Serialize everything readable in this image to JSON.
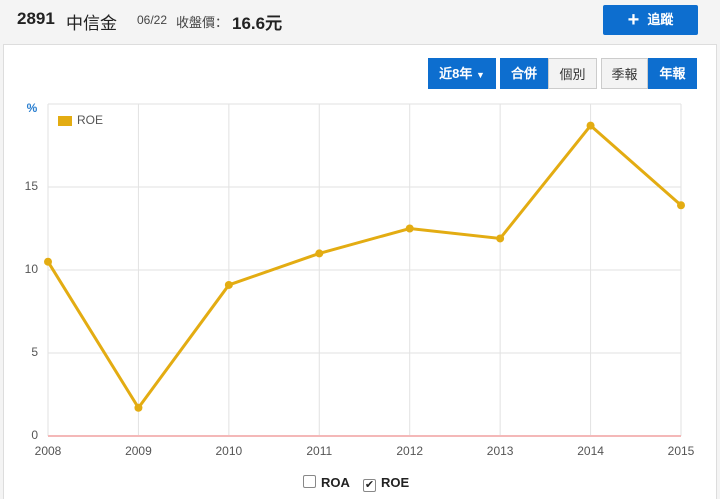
{
  "header": {
    "code": "2891",
    "name": "中信金",
    "date": "06/22",
    "price_label": "收盤價：",
    "price": "16.6元",
    "follow": "追蹤"
  },
  "controls": {
    "range": "近8年",
    "scope": [
      "合併",
      "個別"
    ],
    "period": [
      "季報",
      "年報"
    ]
  },
  "chart_data": {
    "type": "line",
    "y_label": "%",
    "x": [
      2008,
      2009,
      2010,
      2011,
      2012,
      2013,
      2014,
      2015
    ],
    "xlim": [
      2008,
      2015
    ],
    "xticks": [
      2008,
      2009,
      2010,
      2011,
      2012,
      2013,
      2014,
      2015
    ],
    "ylim": [
      0,
      20
    ],
    "yticks": [
      0,
      5,
      10,
      15
    ],
    "grid": true,
    "legend": "top-left",
    "series": [
      {
        "name": "ROE",
        "color": "#e3ac12",
        "values": [
          10.5,
          1.7,
          9.1,
          11.0,
          12.5,
          11.9,
          18.7,
          13.9
        ]
      }
    ]
  },
  "toggles": [
    {
      "label": "ROA",
      "checked": false
    },
    {
      "label": "ROE",
      "checked": true
    }
  ]
}
